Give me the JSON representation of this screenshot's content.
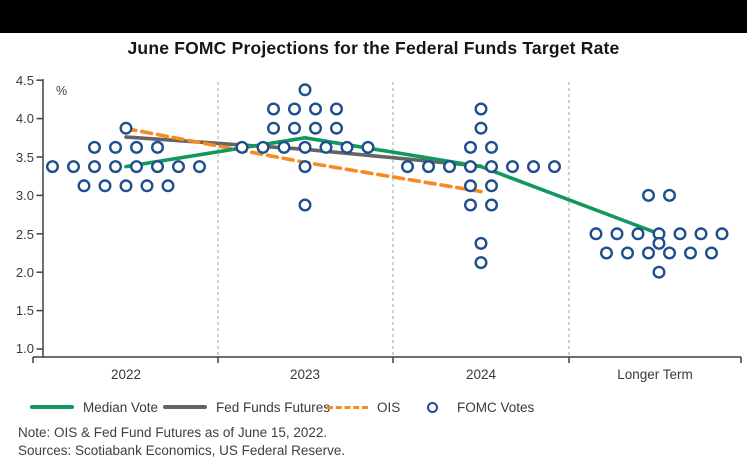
{
  "header": {
    "title": "June FOMC Projections for the Federal Funds Target Rate"
  },
  "chart_data": {
    "type": "scatter",
    "title": "June FOMC Projections for the Federal Funds Target Rate",
    "unit_label": "%",
    "y_axis": {
      "min": 1.0,
      "max": 4.5,
      "step": 0.5,
      "tick_labels": [
        "4.5",
        "4.0",
        "3.5",
        "3.0",
        "2.5",
        "2.0",
        "1.5",
        "1.0"
      ]
    },
    "x_categories": [
      "2022",
      "2023",
      "2024",
      "Longer Term"
    ],
    "grid": "dashed vertical separators between periods",
    "legend_position": "bottom",
    "fomc_votes": {
      "2022": [
        {
          "rate": 3.875,
          "count": 1
        },
        {
          "rate": 3.625,
          "count": 4
        },
        {
          "rate": 3.375,
          "count": 8
        },
        {
          "rate": 3.125,
          "count": 5
        }
      ],
      "2023": [
        {
          "rate": 4.375,
          "count": 1
        },
        {
          "rate": 4.125,
          "count": 4
        },
        {
          "rate": 3.875,
          "count": 4
        },
        {
          "rate": 3.625,
          "count": 7
        },
        {
          "rate": 3.375,
          "count": 1
        },
        {
          "rate": 2.875,
          "count": 1
        }
      ],
      "2024": [
        {
          "rate": 4.125,
          "count": 1
        },
        {
          "rate": 3.875,
          "count": 1
        },
        {
          "rate": 3.625,
          "count": 2
        },
        {
          "rate": 3.375,
          "count": 8
        },
        {
          "rate": 3.125,
          "count": 2
        },
        {
          "rate": 2.875,
          "count": 2
        },
        {
          "rate": 2.375,
          "count": 1
        },
        {
          "rate": 2.125,
          "count": 1
        }
      ],
      "Longer Term": [
        {
          "rate": 3.0,
          "count": 2
        },
        {
          "rate": 2.5,
          "count": 7
        },
        {
          "rate": 2.375,
          "count": 1
        },
        {
          "rate": 2.25,
          "count": 6
        },
        {
          "rate": 2.0,
          "count": 1
        }
      ]
    },
    "series": [
      {
        "name": "Median Vote",
        "color": "#12985E",
        "style": "solid",
        "points": [
          {
            "x": "2022",
            "value": 3.375
          },
          {
            "x": "2023",
            "value": 3.75
          },
          {
            "x": "2024",
            "value": 3.375
          },
          {
            "x": "Longer Term",
            "value": 2.5
          }
        ]
      },
      {
        "name": "Fed Funds Futures",
        "color": "#646464",
        "style": "solid",
        "points": [
          {
            "x": "2022",
            "value": 3.76
          },
          {
            "x": "2023",
            "value": 3.6
          },
          {
            "x": "2024",
            "value": 3.38
          }
        ]
      },
      {
        "name": "OIS",
        "color": "#F78B20",
        "style": "dashed",
        "points": [
          {
            "x": "2022",
            "value": 3.87
          },
          {
            "x": "2023",
            "value": 3.43
          },
          {
            "x": "2024",
            "value": 3.05
          }
        ]
      }
    ],
    "dot_color": "#1F4E8C"
  },
  "legend": {
    "items": [
      {
        "label": "Median Vote",
        "swatch": "line-solid",
        "color": "#12985E"
      },
      {
        "label": "Fed Funds Futures",
        "swatch": "line-solid",
        "color": "#646464"
      },
      {
        "label": "OIS",
        "swatch": "line-dashed",
        "color": "#F78B20"
      },
      {
        "label": "FOMC Votes",
        "swatch": "open-circle",
        "color": "#1F4E8C"
      }
    ]
  },
  "footnotes": {
    "note": "Note: OIS & Fed Fund Futures as of June 15, 2022.",
    "sources": "Sources: Scotiabank Economics, US Federal Reserve."
  }
}
